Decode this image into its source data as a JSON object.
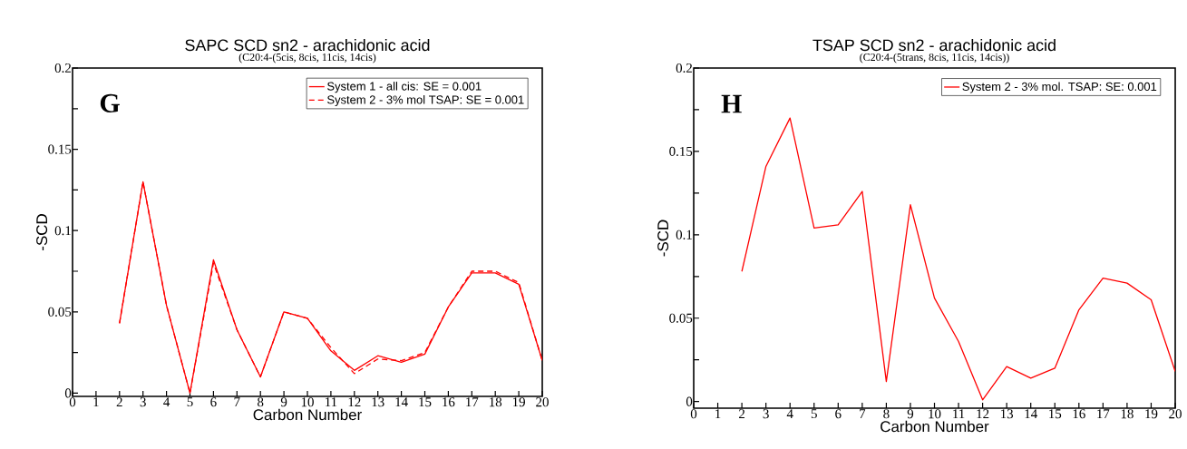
{
  "chart_data": [
    {
      "type": "line",
      "title": "SAPC SCD sn2 - arachidonic acid",
      "subtitle": "(C20:4-(5cis, 8cis, 11cis, 14cis)",
      "xlabel": "Carbon Number",
      "ylabel": "-SCD",
      "annotations": [
        "G"
      ],
      "x": [
        2,
        3,
        4,
        5,
        6,
        7,
        8,
        9,
        10,
        11,
        12,
        13,
        14,
        15,
        16,
        17,
        18,
        19,
        20
      ],
      "series": [
        {
          "name": "System 1 - all cis: SE = 0.001",
          "color": "#ff0000",
          "line_style": "solid",
          "values": [
            0.043,
            0.13,
            0.054,
            0.0,
            0.082,
            0.039,
            0.01,
            0.05,
            0.046,
            0.026,
            0.014,
            0.023,
            0.019,
            0.024,
            0.053,
            0.074,
            0.074,
            0.067,
            0.02
          ]
        },
        {
          "name": "System 2 - 3% mol TSAP: SE = 0.001",
          "color": "#ff0000",
          "line_style": "dashed",
          "values": [
            0.043,
            0.13,
            0.054,
            0.0,
            0.08,
            0.039,
            0.01,
            0.05,
            0.046,
            0.028,
            0.012,
            0.021,
            0.02,
            0.025,
            0.053,
            0.075,
            0.075,
            0.068,
            0.02
          ]
        }
      ],
      "xlim": [
        0,
        20
      ],
      "xticks": [
        0,
        1,
        2,
        3,
        4,
        5,
        6,
        7,
        8,
        9,
        10,
        11,
        12,
        13,
        14,
        15,
        16,
        17,
        18,
        19,
        20
      ],
      "ylim": [
        -0.002,
        0.2
      ],
      "yticks": [
        0,
        {
          "value": 0.025,
          "label": null
        },
        0.05,
        {
          "value": 0.075,
          "label": null
        },
        0.1,
        {
          "value": 0.125,
          "label": null
        },
        0.15,
        {
          "value": 0.175,
          "label": null
        },
        0.2
      ],
      "legend": "top right",
      "grid": false
    },
    {
      "type": "line",
      "title": "TSAP SCD sn2 - arachidonic acid",
      "subtitle": "(C20:4-(5trans, 8cis, 11cis, 14cis))",
      "xlabel": "Carbon Number",
      "ylabel": "-SCD",
      "annotations": [
        "H"
      ],
      "x": [
        2,
        3,
        4,
        5,
        6,
        7,
        8,
        9,
        10,
        11,
        12,
        13,
        14,
        15,
        16,
        17,
        18,
        19,
        20
      ],
      "series": [
        {
          "name": "System 2 - 3% mol. TSAP: SE: 0.001",
          "color": "#ff0000",
          "line_style": "solid",
          "values": [
            0.078,
            0.141,
            0.17,
            0.104,
            0.106,
            0.126,
            0.012,
            0.118,
            0.062,
            0.036,
            0.001,
            0.021,
            0.014,
            0.02,
            0.055,
            0.074,
            0.071,
            0.061,
            0.018
          ]
        }
      ],
      "xlim": [
        0,
        20
      ],
      "xticks": [
        0,
        1,
        2,
        3,
        4,
        5,
        6,
        7,
        8,
        9,
        10,
        11,
        12,
        13,
        14,
        15,
        16,
        17,
        18,
        19,
        20
      ],
      "ylim": [
        -0.004,
        0.2
      ],
      "yticks": [
        0,
        {
          "value": 0.025,
          "label": null
        },
        0.05,
        {
          "value": 0.075,
          "label": null
        },
        0.1,
        {
          "value": 0.125,
          "label": null
        },
        0.15,
        {
          "value": 0.175,
          "label": null
        },
        0.2
      ],
      "legend": "top right",
      "grid": false
    }
  ]
}
